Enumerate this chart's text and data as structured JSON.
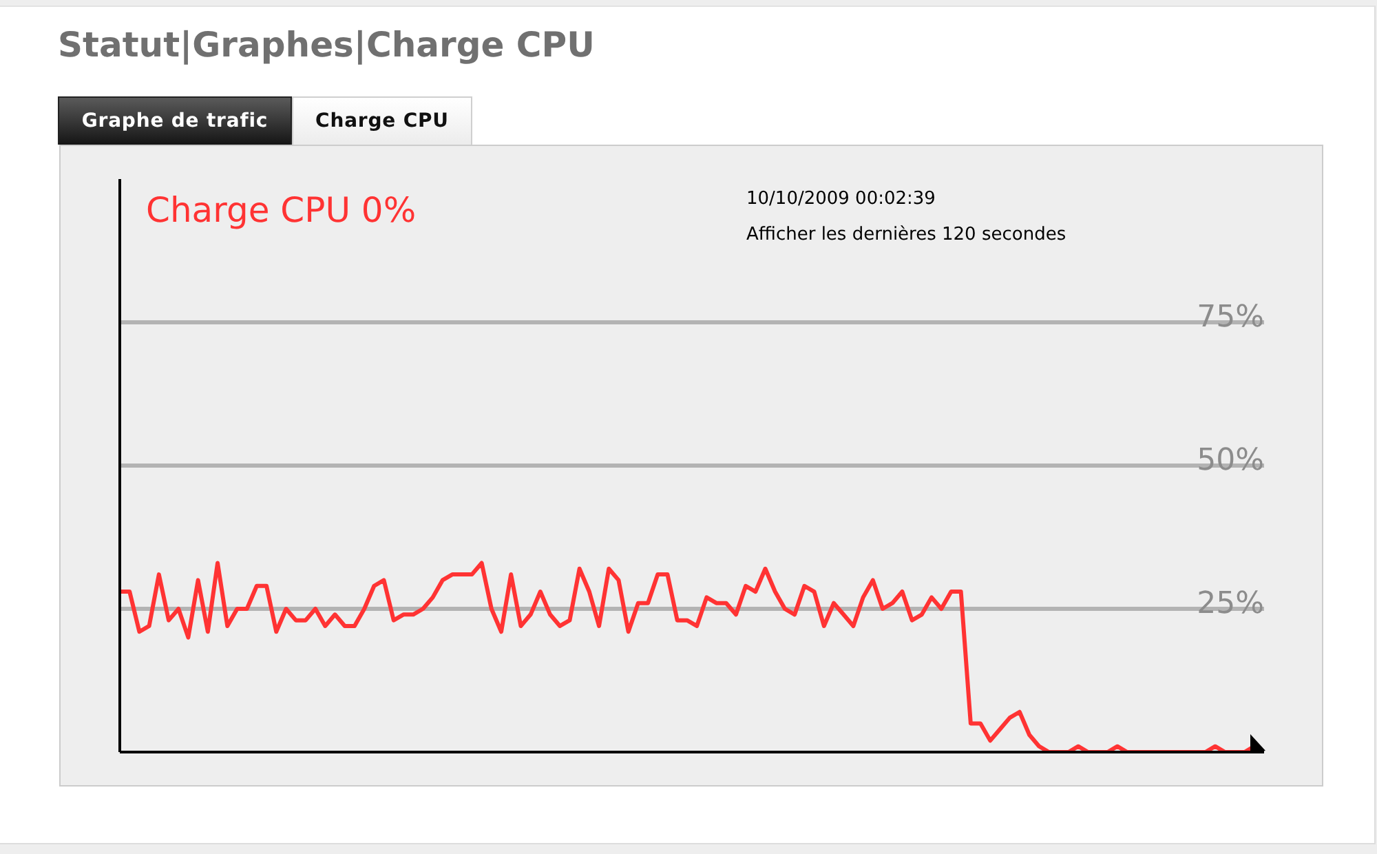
{
  "chart_data": {
    "type": "line",
    "title": "Statut|Graphes|Charge CPU",
    "categories": [
      null,
      null,
      null,
      null,
      null,
      null,
      null,
      null,
      null,
      null,
      null,
      null,
      null,
      null,
      null,
      null,
      null,
      null,
      null,
      null,
      null,
      null,
      null,
      null,
      null,
      null,
      null,
      null,
      null,
      null,
      null,
      null,
      null,
      null,
      null,
      null,
      null,
      null,
      null,
      null,
      null,
      null,
      null,
      null,
      null,
      null,
      null,
      null,
      null,
      null,
      null,
      null,
      null,
      null,
      null,
      null,
      null,
      null,
      null,
      null,
      null,
      null,
      null,
      null,
      null,
      null,
      null,
      null,
      null,
      null,
      null,
      null,
      null,
      null,
      null,
      null,
      null,
      null,
      null,
      null,
      null,
      null,
      null,
      null,
      null,
      null,
      null,
      null,
      null,
      null,
      null,
      null,
      null,
      null,
      null,
      null,
      null,
      null,
      null,
      null,
      null,
      null,
      null,
      null,
      null,
      null,
      null,
      null,
      null,
      null,
      null,
      null,
      null,
      null,
      null,
      null,
      null,
      null
    ],
    "series": [
      {
        "name": "Charge CPU 0%",
        "color": "#ff3333",
        "values": [
          28,
          28,
          21,
          22,
          31,
          23,
          25,
          20,
          30,
          21,
          33,
          22,
          25,
          25,
          29,
          29,
          21,
          25,
          23,
          23,
          25,
          22,
          24,
          22,
          22,
          25,
          29,
          30,
          23,
          24,
          24,
          25,
          27,
          30,
          31,
          31,
          31,
          33,
          25,
          21,
          31,
          22,
          24,
          28,
          24,
          22,
          23,
          32,
          28,
          22,
          32,
          30,
          21,
          26,
          26,
          31,
          31,
          23,
          23,
          22,
          27,
          26,
          26,
          24,
          29,
          28,
          32,
          28,
          25,
          24,
          29,
          28,
          22,
          26,
          24,
          22,
          27,
          30,
          25,
          26,
          28,
          23,
          24,
          27,
          25,
          28,
          28,
          5,
          5,
          2,
          4,
          6,
          7,
          3,
          1,
          0,
          0,
          0,
          1,
          0,
          0,
          0,
          1,
          0,
          0,
          0,
          0,
          0,
          0,
          0,
          0,
          0,
          1,
          0,
          0,
          0,
          1,
          0
        ]
      }
    ],
    "ylim": [
      0,
      100
    ],
    "yticks": [
      {
        "value": 25,
        "label": "25%"
      },
      {
        "value": 50,
        "label": "50%"
      },
      {
        "value": 75,
        "label": "75%"
      }
    ],
    "grid": "y",
    "tick_labels": "y",
    "marker": "none",
    "line_style": "solid",
    "annotations": [
      "Graphe de trafic",
      "Charge CPU",
      "10/10/2009 00:02:39",
      "Afficher les dernières 120 secondes"
    ]
  }
}
